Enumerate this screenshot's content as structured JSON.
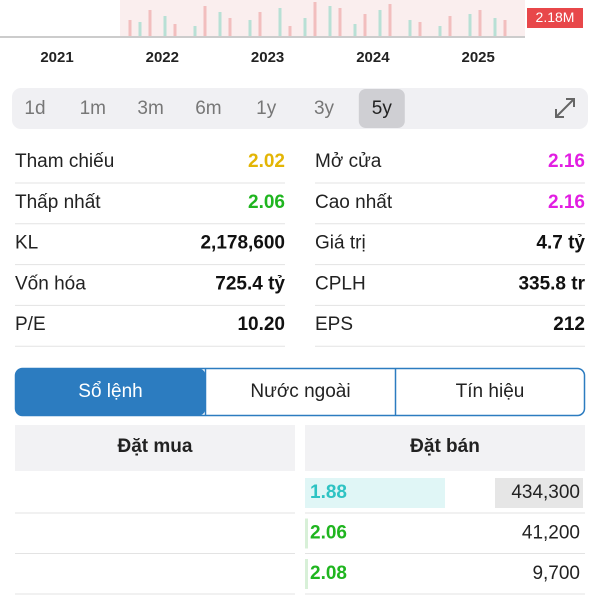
{
  "chart_strip": {
    "years": [
      "2021",
      "2022",
      "2023",
      "2024",
      "2025"
    ],
    "volume_label": "2.18M"
  },
  "periods": {
    "items": [
      "1d",
      "1m",
      "3m",
      "6m",
      "1y",
      "3y",
      "5y"
    ],
    "selected": 6
  },
  "stats": {
    "rows": [
      [
        {
          "label": "Tham chiếu",
          "value": "2.02",
          "color": "#e3b505"
        },
        {
          "label": "Mở cửa",
          "value": "2.16",
          "color": "#e21ee2"
        }
      ],
      [
        {
          "label": "Thấp nhất",
          "value": "2.06",
          "color": "#1fb51f"
        },
        {
          "label": "Cao nhất",
          "value": "2.16",
          "color": "#e21ee2"
        }
      ],
      [
        {
          "label": "KL",
          "value": "2,178,600",
          "color": "#111111"
        },
        {
          "label": "Giá trị",
          "value": "4.7 tỷ",
          "color": "#111111"
        }
      ],
      [
        {
          "label": "Vốn hóa",
          "value": "725.4 tỷ",
          "color": "#111111"
        },
        {
          "label": "CPLH",
          "value": "335.8 tr",
          "color": "#111111"
        }
      ],
      [
        {
          "label": "P/E",
          "value": "10.20",
          "color": "#111111"
        },
        {
          "label": "EPS",
          "value": "212",
          "color": "#111111"
        }
      ]
    ]
  },
  "tabs": {
    "items": [
      "Sổ lệnh",
      "Nước ngoài",
      "Tín hiệu"
    ],
    "active": 0
  },
  "order_book": {
    "headers": [
      "Đặt mua",
      "Đặt bán"
    ],
    "asks": [
      {
        "price": "1.88",
        "volume": "434,300",
        "color": "#2ec3c3"
      },
      {
        "price": "2.06",
        "volume": "41,200",
        "color": "#1fb51f"
      },
      {
        "price": "2.08",
        "volume": "9,700",
        "color": "#1fb51f"
      }
    ]
  }
}
